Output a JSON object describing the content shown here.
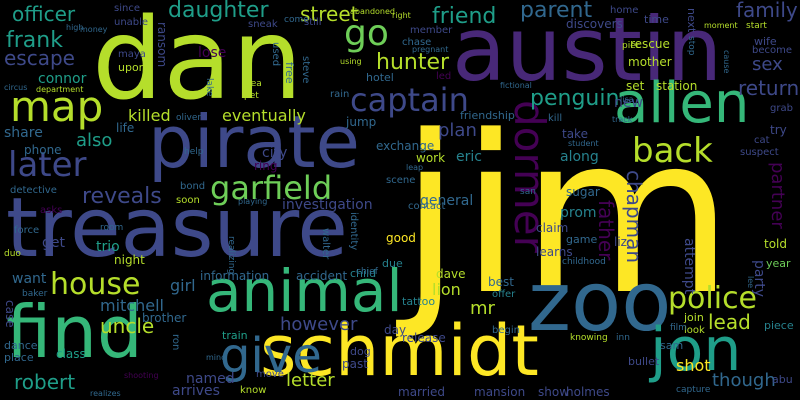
{
  "palette": {
    "yellow": "#fde725",
    "lime": "#b5de2b",
    "green": "#6ece58",
    "teal_green": "#35b779",
    "teal": "#1f9e89",
    "cyan_blue": "#26828e",
    "blue": "#31688e",
    "indigo": "#3e4989",
    "violet": "#482878",
    "dark_purple": "#440154"
  },
  "cloud": {
    "words": [
      "jim",
      "dan",
      "austin",
      "treasure",
      "pirate",
      "zoo",
      "schmidt",
      "find",
      "animal",
      "give",
      "allen",
      "jon",
      "map",
      "dormer",
      "captain",
      "police",
      "garfield",
      "later",
      "house",
      "back",
      "go",
      "street",
      "daughter",
      "frank",
      "escape",
      "officer",
      "friend",
      "parent",
      "family",
      "hunter",
      "penguin",
      "return",
      "sex",
      "reveals",
      "chapman",
      "father",
      "partner",
      "also",
      "killed",
      "eventually",
      "however",
      "letter",
      "uncle",
      "robert",
      "mitchell",
      "lead",
      "shot",
      "though",
      "plan",
      "eric",
      "along",
      "general",
      "prom",
      "mr",
      "lion",
      "get",
      "want",
      "girl",
      "named",
      "arrives",
      "connor",
      "share",
      "phone",
      "detective",
      "city",
      "investigation",
      "good",
      "dave",
      "information",
      "accident",
      "new",
      "attempt",
      "party",
      "liz",
      "claim",
      "learns",
      "game",
      "told",
      "year",
      "brother",
      "trio",
      "night",
      "child",
      "chief",
      "best",
      "offer",
      "join",
      "look",
      "piece",
      "film",
      "capture",
      "abu",
      "holmes",
      "show",
      "mansion",
      "married",
      "class",
      "place",
      "dance",
      "case",
      "baker",
      "due",
      "tattoo",
      "day",
      "release",
      "past",
      "dog",
      "sam",
      "bullet",
      "know",
      "move",
      "ron",
      "train",
      "since",
      "unable",
      "upon",
      "maya",
      "lose",
      "ransom",
      "steve",
      "free",
      "used",
      "sneak",
      "come",
      "still",
      "abandoned",
      "right",
      "member",
      "chase",
      "pregnant",
      "home",
      "rescue",
      "mother",
      "time",
      "next",
      "stop",
      "pier",
      "moment",
      "start",
      "wife",
      "become",
      "cause",
      "discovers",
      "station",
      "set",
      "friendship",
      "kill",
      "fictional",
      "student",
      "track",
      "lisa",
      "grab",
      "try",
      "cat",
      "suspect",
      "take",
      "sugar",
      "leap",
      "scene",
      "work",
      "contact",
      "identity",
      "walter",
      "playing",
      "realizing",
      "soon",
      "bond",
      "help",
      "ring",
      "life",
      "oliver",
      "force",
      "asks",
      "duo",
      "room",
      "hotel",
      "rain",
      "jump",
      "exchange",
      "led",
      "using",
      "sea",
      "pet",
      "lake",
      "circus",
      "department",
      "money",
      "high",
      "realizes",
      "shooting",
      "mind",
      "knowing",
      "inn",
      "begin",
      "childhood",
      "san",
      "lee"
    ]
  }
}
